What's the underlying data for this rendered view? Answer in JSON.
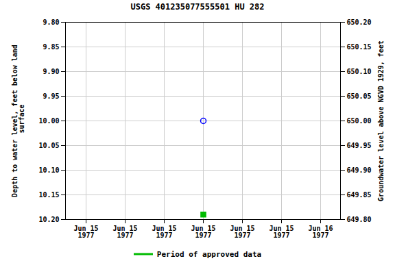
{
  "chart_data": {
    "type": "scatter",
    "title": "USGS 401235077555501 HU   282",
    "y_label": "Depth to water level, feet below land\n surface",
    "y2_label": "Groundwater level above NGVD 1929, feet",
    "categories": [
      "Jun 15\n1977",
      "Jun 15\n1977",
      "Jun 15\n1977",
      "Jun 15\n1977",
      "Jun 15\n1977",
      "Jun 15\n1977",
      "Jun 16\n1977"
    ],
    "series": [
      {
        "color": "blue",
        "marker": "circle",
        "values": [
          null,
          null,
          null,
          10.0,
          null,
          null,
          null
        ]
      },
      {
        "name": "Period of approved data",
        "color": "#00bb00",
        "marker": "square",
        "values": [
          null,
          null,
          null,
          10.19,
          null,
          null,
          null
        ]
      }
    ],
    "ylim": [
      10.2,
      9.8
    ],
    "yticks": [
      {
        "value": 9.8,
        "label": "9.80"
      },
      {
        "value": 9.85,
        "label": "9.85"
      },
      {
        "value": 9.9,
        "label": "9.90"
      },
      {
        "value": 9.95,
        "label": "9.95"
      },
      {
        "value": 10.0,
        "label": "10.00"
      },
      {
        "value": 10.05,
        "label": "10.05"
      },
      {
        "value": 10.1,
        "label": "10.10"
      },
      {
        "value": 10.15,
        "label": "10.15"
      },
      {
        "value": 10.2,
        "label": "10.20"
      }
    ],
    "y2lim": [
      649.8,
      650.2
    ],
    "y2ticks": [
      {
        "value": 650.2,
        "label": "650.20"
      },
      {
        "value": 650.15,
        "label": "650.15"
      },
      {
        "value": 650.1,
        "label": "650.10"
      },
      {
        "value": 650.05,
        "label": "650.05"
      },
      {
        "value": 650.0,
        "label": "650.00"
      },
      {
        "value": 649.95,
        "label": "649.95"
      },
      {
        "value": 649.9,
        "label": "649.90"
      },
      {
        "value": 649.85,
        "label": "649.85"
      },
      {
        "value": 649.8,
        "label": "649.80"
      }
    ],
    "grid": true,
    "legend": "bottom"
  }
}
